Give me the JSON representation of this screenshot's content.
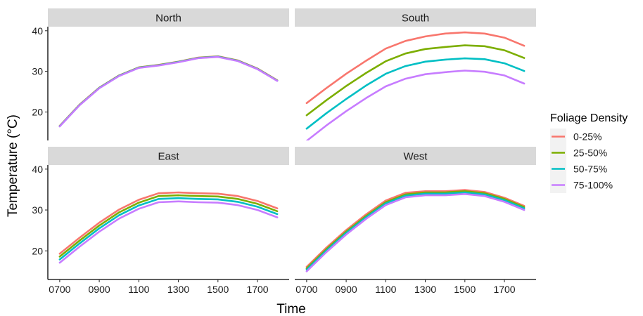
{
  "chart_data": {
    "type": "line",
    "xlabel": "Time",
    "ylabel": "Temperature (°C)",
    "ylim": [
      13,
      41
    ],
    "xlim": [
      640,
      1860
    ],
    "x": [
      700,
      800,
      900,
      1000,
      1100,
      1200,
      1300,
      1400,
      1500,
      1600,
      1700,
      1800
    ],
    "xticks": [
      "0700",
      "0900",
      "1100",
      "1300",
      "1500",
      "1700"
    ],
    "xtick_values": [
      700,
      900,
      1100,
      1300,
      1500,
      1700
    ],
    "yticks": [
      "20",
      "30",
      "40"
    ],
    "ytick_values": [
      20,
      30,
      40
    ],
    "grid": false,
    "legend": {
      "title": "Foliage Density",
      "position": "right",
      "entries": [
        "0-25%",
        "25-50%",
        "50-75%",
        "75-100%"
      ]
    },
    "colors": [
      "#F8766D",
      "#7CAE00",
      "#00BFC4",
      "#C77CFF"
    ],
    "panels": [
      {
        "name": "North",
        "series": [
          {
            "name": "0-25%",
            "values": [
              16.6,
              21.8,
              26.0,
              29.0,
              31.0,
              31.6,
              32.4,
              33.4,
              33.7,
              32.7,
              30.7,
              27.8
            ]
          },
          {
            "name": "25-50%",
            "values": [
              16.55,
              21.75,
              25.95,
              28.95,
              30.95,
              31.55,
              32.35,
              33.35,
              33.65,
              32.65,
              30.65,
              27.75
            ]
          },
          {
            "name": "50-75%",
            "values": [
              16.5,
              21.7,
              25.9,
              28.9,
              30.9,
              31.5,
              32.3,
              33.3,
              33.6,
              32.6,
              30.6,
              27.7
            ]
          },
          {
            "name": "75-100%",
            "values": [
              16.45,
              21.65,
              25.85,
              28.85,
              30.85,
              31.45,
              32.25,
              33.25,
              33.55,
              32.55,
              30.55,
              27.65
            ]
          }
        ]
      },
      {
        "name": "South",
        "series": [
          {
            "name": "0-25%",
            "values": [
              22.2,
              25.9,
              29.4,
              32.6,
              35.6,
              37.5,
              38.6,
              39.3,
              39.6,
              39.3,
              38.3,
              36.3
            ]
          },
          {
            "name": "25-50%",
            "values": [
              19.2,
              22.9,
              26.4,
              29.6,
              32.5,
              34.4,
              35.5,
              36.0,
              36.4,
              36.2,
              35.2,
              33.3
            ]
          },
          {
            "name": "50-75%",
            "values": [
              15.9,
              19.7,
              23.2,
              26.5,
              29.4,
              31.3,
              32.4,
              32.9,
              33.2,
              33.0,
              32.0,
              30.1
            ]
          },
          {
            "name": "75-100%",
            "values": [
              12.9,
              16.7,
              20.2,
              23.4,
              26.3,
              28.2,
              29.3,
              29.8,
              30.2,
              29.9,
              29.0,
              27.0
            ]
          }
        ]
      },
      {
        "name": "East",
        "series": [
          {
            "name": "0-25%",
            "values": [
              19.3,
              23.2,
              26.9,
              30.1,
              32.5,
              34.1,
              34.3,
              34.1,
              34.0,
              33.4,
              32.2,
              30.4
            ]
          },
          {
            "name": "25-50%",
            "values": [
              18.6,
              22.5,
              26.2,
              29.4,
              31.8,
              33.4,
              33.6,
              33.4,
              33.3,
              32.7,
              31.5,
              29.7
            ]
          },
          {
            "name": "50-75%",
            "values": [
              17.9,
              21.8,
              25.5,
              28.7,
              31.1,
              32.7,
              32.9,
              32.7,
              32.6,
              32.0,
              30.8,
              29.0
            ]
          },
          {
            "name": "75-100%",
            "values": [
              17.1,
              21.0,
              24.7,
              27.9,
              30.3,
              31.9,
              32.1,
              31.9,
              31.8,
              31.2,
              30.0,
              28.2
            ]
          }
        ]
      },
      {
        "name": "West",
        "series": [
          {
            "name": "0-25%",
            "values": [
              16.1,
              20.8,
              25.1,
              28.9,
              32.3,
              34.2,
              34.6,
              34.6,
              34.9,
              34.4,
              33.0,
              31.0
            ]
          },
          {
            "name": "25-50%",
            "values": [
              15.7,
              20.4,
              24.7,
              28.5,
              31.9,
              33.8,
              34.3,
              34.3,
              34.6,
              34.1,
              32.7,
              30.7
            ]
          },
          {
            "name": "50-75%",
            "values": [
              15.4,
              20.1,
              24.4,
              28.2,
              31.6,
              33.5,
              34.0,
              34.0,
              34.3,
              33.8,
              32.4,
              30.4
            ]
          },
          {
            "name": "75-100%",
            "values": [
              15.0,
              19.7,
              24.0,
              27.8,
              31.2,
              33.1,
              33.6,
              33.6,
              33.9,
              33.4,
              32.0,
              30.0
            ]
          }
        ]
      }
    ]
  }
}
